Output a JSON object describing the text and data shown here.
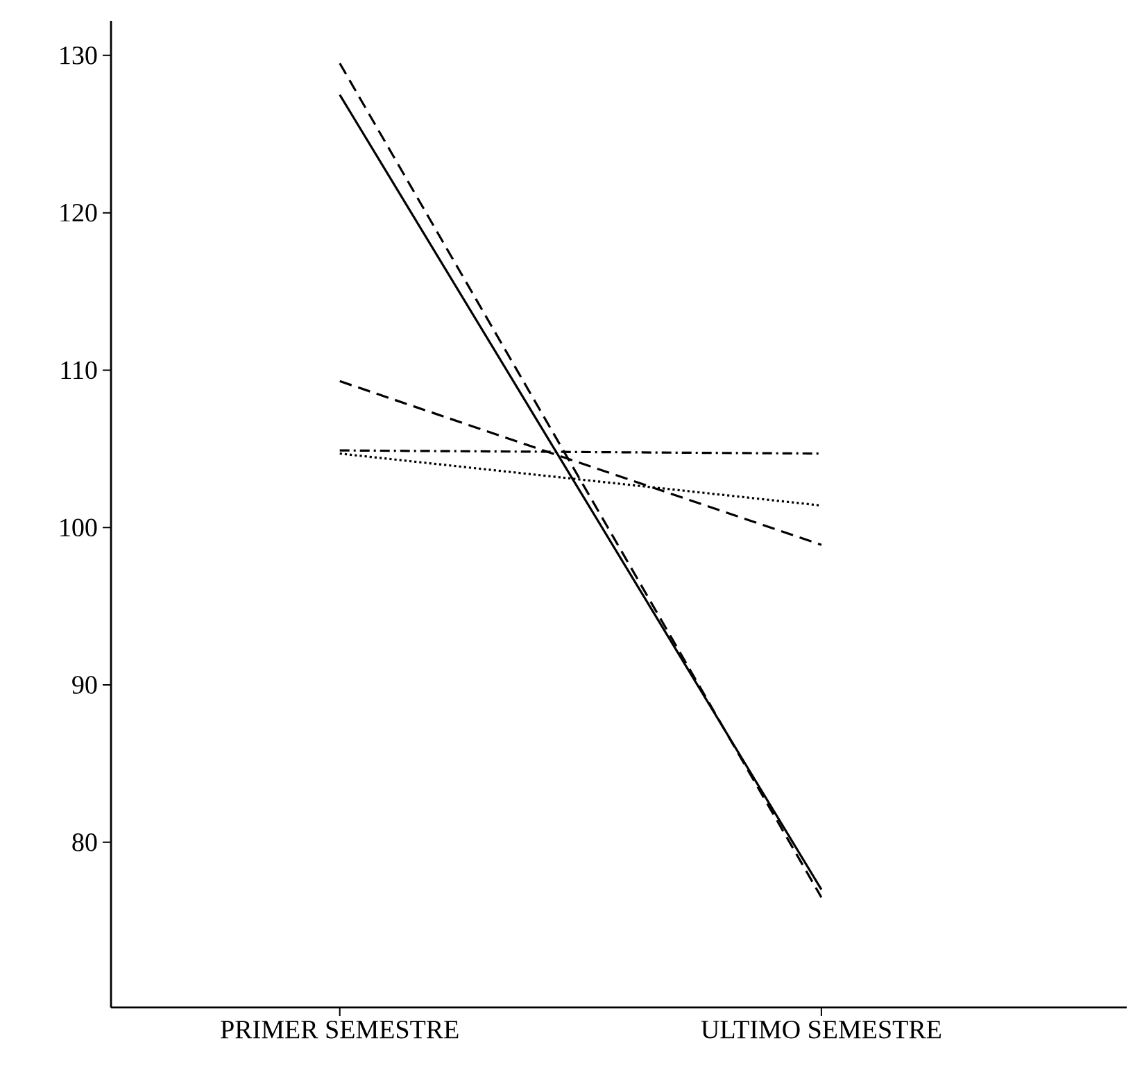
{
  "chart_data": {
    "type": "line",
    "categories": [
      "PRIMER SEMESTRE",
      "ULTIMO SEMESTRE"
    ],
    "series": [
      {
        "color": "#000000",
        "line_style": "solid",
        "values": [
          127.5,
          77
        ]
      },
      {
        "color": "#000000",
        "line_style": "dashed",
        "values": [
          129.5,
          76.5
        ]
      },
      {
        "color": "#000000",
        "line_style": "dashed",
        "values": [
          109.3,
          98.9
        ]
      },
      {
        "color": "#000000",
        "line_style": "dashdotted",
        "values": [
          104.9,
          104.7
        ]
      },
      {
        "color": "#000000",
        "line_style": "dotted",
        "values": [
          104.7,
          101.4
        ]
      }
    ],
    "ylim": [
      69.5,
      132.2
    ],
    "yticks": [
      80,
      90,
      100,
      110,
      120,
      130
    ],
    "grid": false,
    "marker": "none"
  }
}
